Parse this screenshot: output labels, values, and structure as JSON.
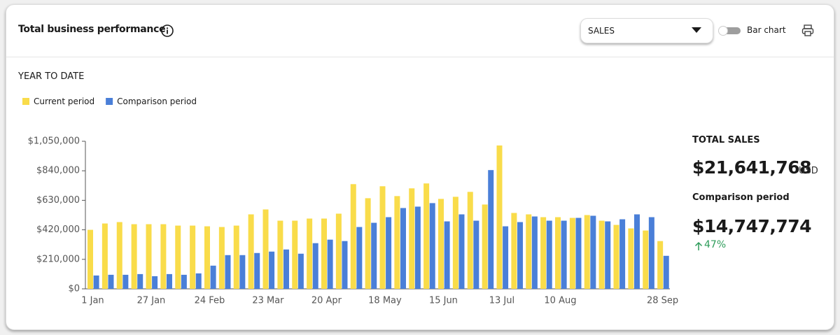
{
  "header": {
    "title": "Total business performance",
    "metric_select": "SALES",
    "toggle_label": "Bar chart"
  },
  "period_label": "YEAR TO DATE",
  "chart_data": {
    "type": "bar",
    "categories": [
      "1 Jan",
      null,
      null,
      null,
      "27 Jan",
      null,
      null,
      null,
      "24 Feb",
      null,
      null,
      null,
      "23 Mar",
      null,
      null,
      null,
      "20 Apr",
      null,
      null,
      null,
      "18 May",
      null,
      null,
      null,
      "15 Jun",
      null,
      null,
      null,
      "13 Jul",
      null,
      null,
      null,
      "10 Aug",
      null,
      null,
      null,
      null,
      null,
      null,
      "28 Sep"
    ],
    "series": [
      {
        "name": "Current period",
        "color": "#f9dc4a",
        "values": [
          420000,
          465000,
          475000,
          460000,
          460000,
          460000,
          450000,
          450000,
          445000,
          440000,
          450000,
          530000,
          565000,
          485000,
          485000,
          500000,
          500000,
          535000,
          745000,
          645000,
          730000,
          660000,
          715000,
          750000,
          640000,
          655000,
          690000,
          600000,
          1020000,
          540000,
          530000,
          510000,
          510000,
          505000,
          525000,
          485000,
          455000,
          430000,
          415000,
          340000
        ]
      },
      {
        "name": "Comparison period",
        "color": "#4a7fd8",
        "values": [
          95000,
          100000,
          100000,
          105000,
          90000,
          105000,
          100000,
          110000,
          165000,
          240000,
          240000,
          255000,
          265000,
          280000,
          250000,
          325000,
          350000,
          340000,
          440000,
          470000,
          510000,
          575000,
          585000,
          610000,
          480000,
          530000,
          485000,
          845000,
          445000,
          475000,
          515000,
          485000,
          485000,
          505000,
          520000,
          480000,
          495000,
          530000,
          510000,
          235000
        ]
      }
    ],
    "ylim": [
      0,
      1050000
    ],
    "yticks": [
      {
        "value": 0,
        "label": "$0"
      },
      {
        "value": 210000,
        "label": "$210,000"
      },
      {
        "value": 420000,
        "label": "$420,000"
      },
      {
        "value": 630000,
        "label": "$630,000"
      },
      {
        "value": 840000,
        "label": "$840,000"
      },
      {
        "value": 1050000,
        "label": "$1,050,000"
      }
    ]
  },
  "summary": {
    "total_label": "TOTAL SALES",
    "total_value": "$21,641,768",
    "currency": "USD",
    "comparison_label": "Comparison period",
    "comparison_value": "$14,747,774",
    "change": "47%"
  }
}
